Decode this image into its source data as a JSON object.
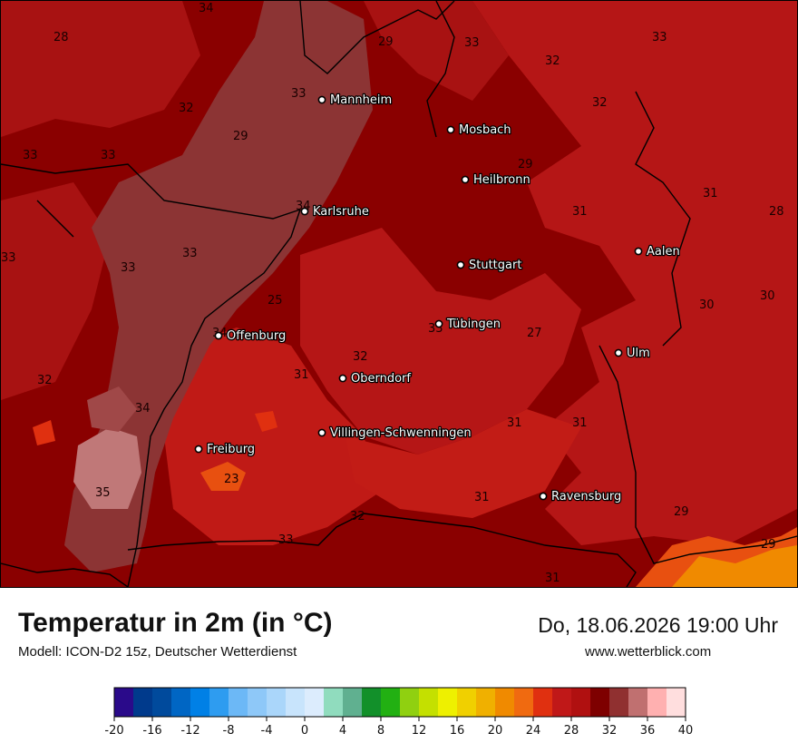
{
  "header": {
    "title": "Temperatur in 2m (in °C)",
    "subtitle": "Modell: ICON-D2 15z, Deutscher Wetterdienst",
    "datetime": "Do, 18.06.2026 19:00 Uhr",
    "website": "www.wetterblick.com"
  },
  "cities": [
    {
      "name": "Mannheim"
    },
    {
      "name": "Mosbach"
    },
    {
      "name": "Heilbronn"
    },
    {
      "name": "Karlsruhe"
    },
    {
      "name": "Aalen"
    },
    {
      "name": "Stuttgart"
    },
    {
      "name": "Tübingen"
    },
    {
      "name": "Offenburg"
    },
    {
      "name": "Ulm"
    },
    {
      "name": "Oberndorf"
    },
    {
      "name": "Villingen-Schwenningen"
    },
    {
      "name": "Freiburg"
    },
    {
      "name": "Ravensburg"
    }
  ],
  "temperature_labels": [
    "34",
    "28",
    "29",
    "33",
    "33",
    "32",
    "32",
    "33",
    "29",
    "33",
    "33",
    "29",
    "34",
    "32",
    "31",
    "28",
    "33",
    "33",
    "33",
    "31",
    "30",
    "25",
    "30",
    "33",
    "34",
    "27",
    "32",
    "32",
    "31",
    "31",
    "31",
    "34",
    "23",
    "35",
    "31",
    "32",
    "29",
    "33",
    "29",
    "31"
  ],
  "legend": {
    "colors": [
      "#2a0a8a",
      "#003a8c",
      "#004a9c",
      "#0066c4",
      "#0080e6",
      "#2e9cf0",
      "#6cb8f6",
      "#8ec8f8",
      "#aad6fa",
      "#c8e4fc",
      "#dcecfd",
      "#90dcbe",
      "#60b090",
      "#12902a",
      "#22b012",
      "#90d010",
      "#c4e000",
      "#eef000",
      "#f0d000",
      "#f0b000",
      "#f08a00",
      "#f06a10",
      "#e03010",
      "#c01818",
      "#b01010",
      "#7e0000",
      "#903030",
      "#c07070",
      "#ffb0b0",
      "#ffdede"
    ],
    "tick_labels": [
      "-20",
      "-16",
      "-12",
      "-8",
      "-4",
      "0",
      "4",
      "8",
      "12",
      "16",
      "20",
      "24",
      "28",
      "32",
      "36",
      "40"
    ]
  },
  "colors": {
    "dark_red": "#8a0000",
    "mid_red": "#b01414",
    "bright_red": "#c21a16",
    "rhine_valley": "#8c3434",
    "hot_pink": "#c07878",
    "orange": "#e85010"
  }
}
